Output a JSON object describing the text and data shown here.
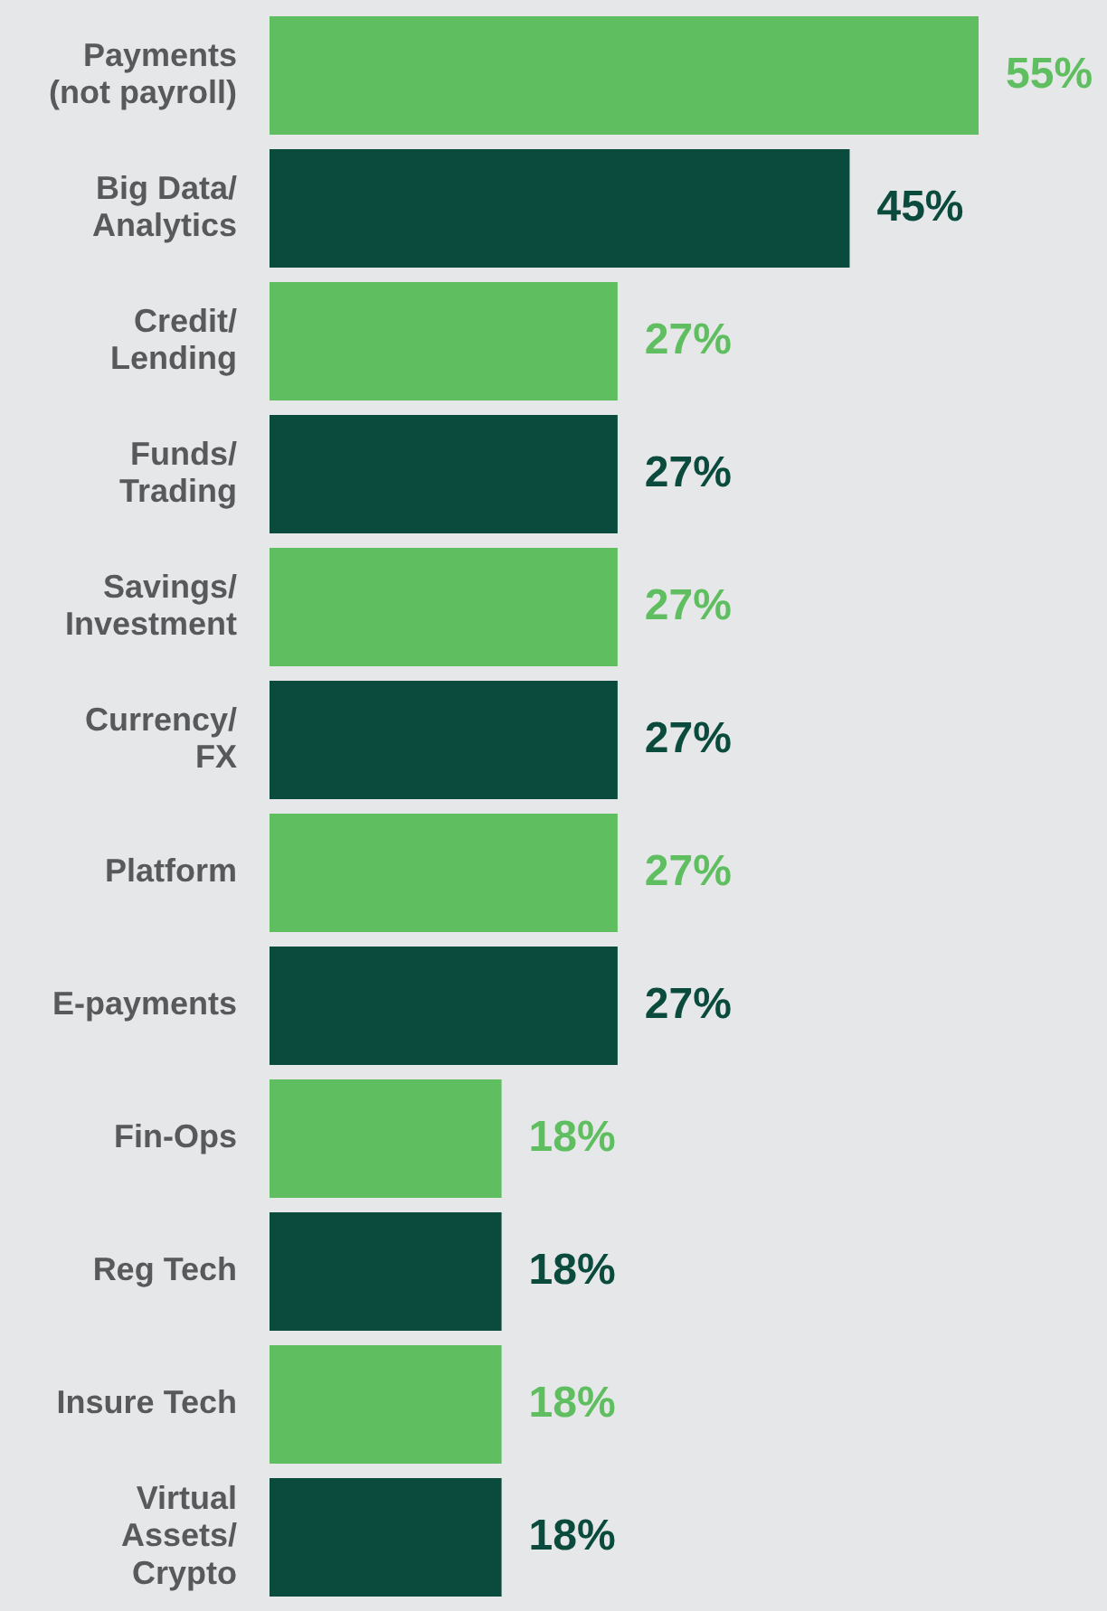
{
  "chart_data": {
    "type": "bar",
    "orientation": "horizontal",
    "categories": [
      "Payments\n(not payroll)",
      "Big Data/\nAnalytics",
      "Credit/\nLending",
      "Funds/\nTrading",
      "Savings/\nInvestment",
      "Currency/\nFX",
      "Platform",
      "E-payments",
      "Fin-Ops",
      "Reg Tech",
      "Insure Tech",
      "Virtual\nAssets/\nCrypto"
    ],
    "values": [
      55,
      45,
      27,
      27,
      27,
      27,
      27,
      27,
      18,
      18,
      18,
      18
    ],
    "colors": [
      "#5fbf60",
      "#0b4b3d",
      "#5fbf60",
      "#0b4b3d",
      "#5fbf60",
      "#0b4b3d",
      "#5fbf60",
      "#0b4b3d",
      "#5fbf60",
      "#0b4b3d",
      "#5fbf60",
      "#0b4b3d"
    ],
    "value_labels": [
      "55%",
      "45%",
      "27%",
      "27%",
      "27%",
      "27%",
      "27%",
      "27%",
      "18%",
      "18%",
      "18%",
      "18%"
    ],
    "xlim": [
      0,
      55
    ],
    "tick_labels": "y",
    "legend": false
  }
}
